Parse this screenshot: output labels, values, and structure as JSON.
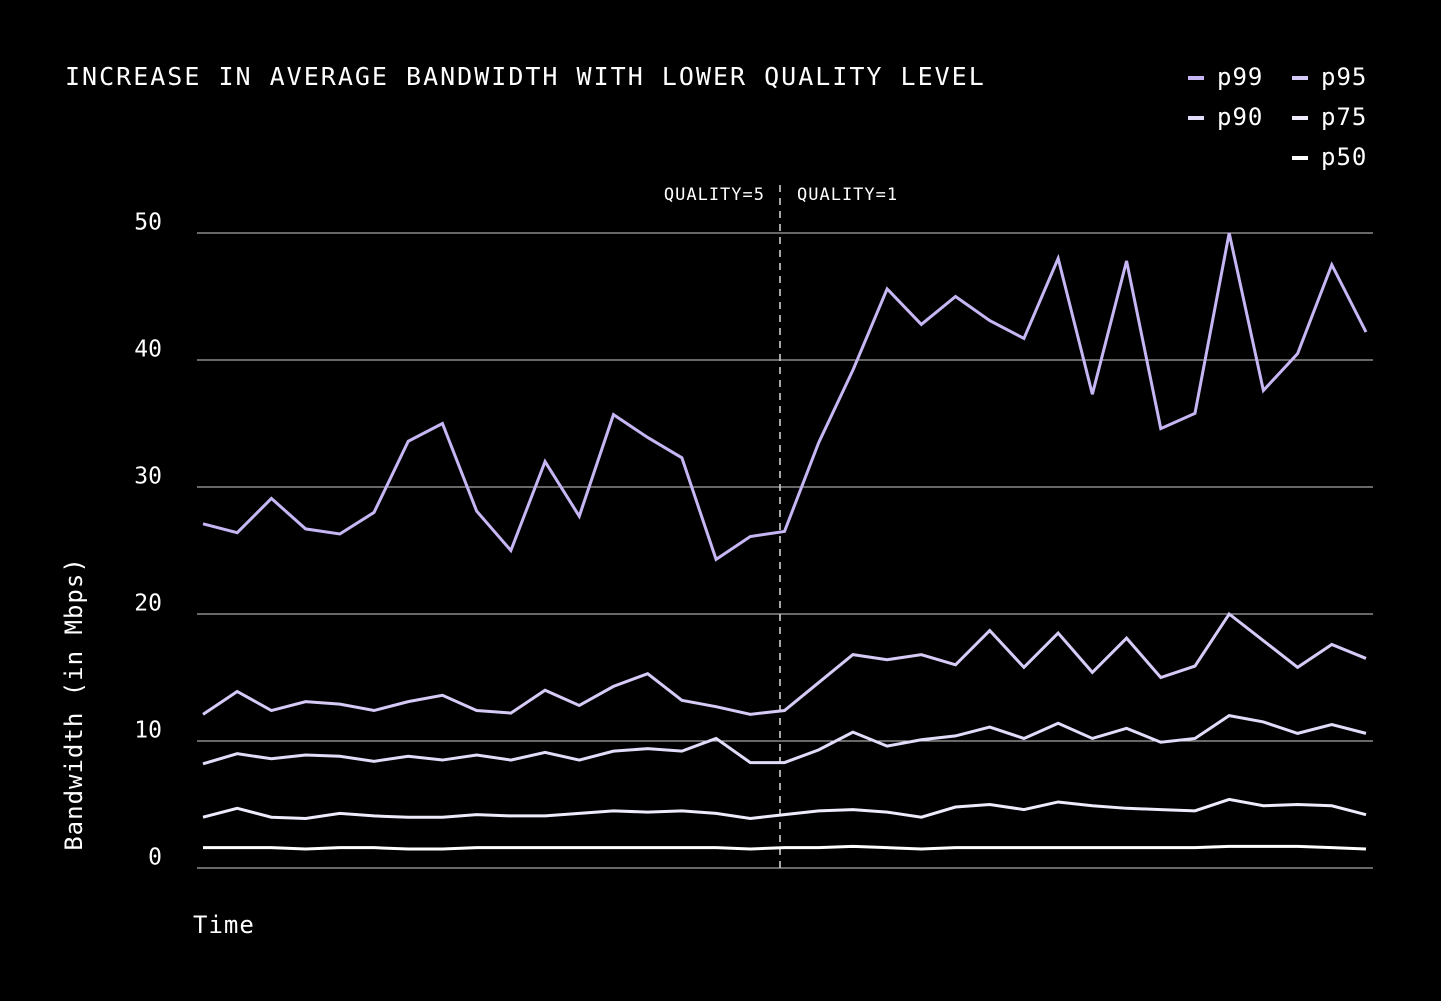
{
  "chart_data": {
    "type": "line",
    "title": "INCREASE IN AVERAGE BANDWIDTH WITH LOWER QUALITY LEVEL",
    "x_label": "Time",
    "y_label": "Bandwidth (in Mbps)",
    "annotations": [
      "QUALITY=5",
      "QUALITY=1"
    ],
    "categories": [
      null,
      null,
      null,
      null,
      null,
      null,
      null,
      null,
      null,
      null,
      null,
      null,
      null,
      null,
      null,
      null,
      null,
      null,
      null,
      null,
      null,
      null,
      null,
      null,
      null,
      null,
      null,
      null,
      null,
      null,
      null,
      null,
      null,
      null,
      null
    ],
    "series": [
      {
        "name": "p99",
        "color": "#c7b6f4",
        "values": [
          27.1,
          26.4,
          29.1,
          26.7,
          26.3,
          28.0,
          33.6,
          35.0,
          28.1,
          25.0,
          32.0,
          27.7,
          35.7,
          33.9,
          32.3,
          24.3,
          26.1,
          26.5,
          33.5,
          39.2,
          45.6,
          42.8,
          45.0,
          43.1,
          41.7,
          48.0,
          37.3,
          47.8,
          34.6,
          35.8,
          50.0,
          37.6,
          40.5,
          47.5,
          42.2
        ]
      },
      {
        "name": "p95",
        "color": "#d6caf7",
        "values": [
          12.1,
          13.9,
          12.4,
          13.1,
          12.9,
          12.4,
          13.1,
          13.6,
          12.4,
          12.2,
          14.0,
          12.8,
          14.3,
          15.3,
          13.2,
          12.7,
          12.1,
          12.4,
          14.6,
          16.8,
          16.4,
          16.8,
          16.0,
          18.7,
          15.8,
          18.5,
          15.4,
          18.1,
          15.0,
          15.9,
          20.0,
          17.9,
          15.8,
          17.6,
          16.5
        ]
      },
      {
        "name": "p90",
        "color": "#e3dbfa",
        "values": [
          8.2,
          9.0,
          8.6,
          8.9,
          8.8,
          8.4,
          8.8,
          8.5,
          8.9,
          8.5,
          9.1,
          8.5,
          9.2,
          9.4,
          9.2,
          10.2,
          8.3,
          8.3,
          9.3,
          10.7,
          9.6,
          10.1,
          10.4,
          11.1,
          10.2,
          11.4,
          10.2,
          11.0,
          9.9,
          10.2,
          12.0,
          11.5,
          10.6,
          11.3,
          10.6
        ]
      },
      {
        "name": "p75",
        "color": "#efeafc",
        "values": [
          4.0,
          4.7,
          4.0,
          3.9,
          4.3,
          4.1,
          4.0,
          4.0,
          4.2,
          4.1,
          4.1,
          4.3,
          4.5,
          4.4,
          4.5,
          4.3,
          3.9,
          4.2,
          4.5,
          4.6,
          4.4,
          4.0,
          4.8,
          5.0,
          4.6,
          5.2,
          4.9,
          4.7,
          4.6,
          4.5,
          5.4,
          4.9,
          5.0,
          4.9,
          4.2
        ]
      },
      {
        "name": "p50",
        "color": "#ffffff",
        "values": [
          1.6,
          1.6,
          1.6,
          1.5,
          1.6,
          1.6,
          1.5,
          1.5,
          1.6,
          1.6,
          1.6,
          1.6,
          1.6,
          1.6,
          1.6,
          1.6,
          1.5,
          1.6,
          1.6,
          1.7,
          1.6,
          1.5,
          1.6,
          1.6,
          1.6,
          1.6,
          1.6,
          1.6,
          1.6,
          1.6,
          1.7,
          1.7,
          1.7,
          1.6,
          1.5
        ]
      }
    ],
    "ylim": [
      0,
      50
    ],
    "yticks": [
      0,
      10,
      20,
      30,
      40,
      50
    ],
    "grid": true,
    "legend": "top-right"
  }
}
